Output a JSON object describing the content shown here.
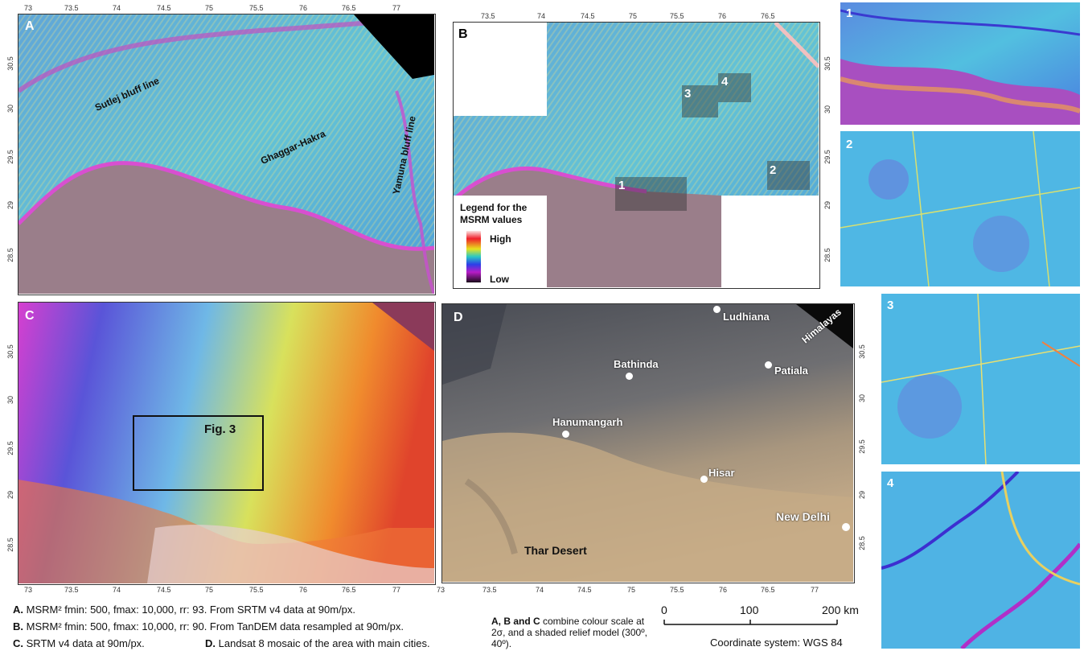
{
  "panels": {
    "A": {
      "letter": "A",
      "labels": {
        "sutlej": "Sutlej bluff line",
        "ghaggar": "Ghaggar-Hakra",
        "yamuna": "Yamuna bluff line"
      }
    },
    "B": {
      "letter": "B",
      "boxes": [
        "1",
        "2",
        "3",
        "4"
      ],
      "legend": {
        "title_line1": "Legend for the",
        "title_line2": "MSRM values",
        "high": "High",
        "low": "Low"
      }
    },
    "C": {
      "letter": "C",
      "fig_label": "Fig. 3"
    },
    "D": {
      "letter": "D",
      "himalayas": "Himalayas",
      "thar": "Thar Desert",
      "cities": {
        "ludhiana": "Ludhiana",
        "bathinda": "Bathinda",
        "patiala": "Patiala",
        "hanumangarh": "Hanumangarh",
        "hisar": "Hisar",
        "new_delhi": "New Delhi"
      }
    }
  },
  "insets": [
    "1",
    "2",
    "3",
    "4"
  ],
  "ticks": {
    "lon": [
      "73",
      "73.5",
      "74",
      "74.5",
      "75",
      "75.5",
      "76",
      "76.5",
      "77"
    ],
    "lat": [
      "30.5",
      "30",
      "29.5",
      "29",
      "28.5"
    ]
  },
  "captions": {
    "a_key": "A.",
    "a_text": "MSRM² fmin: 500, fmax: 10,000, rr: 93. From SRTM v4 data at 90m/px.",
    "b_key": "B.",
    "b_text": "MSRM² fmin: 500, fmax: 10,000, rr: 90. From TanDEM data resampled at 90m/px.",
    "c_key": "C.",
    "c_text": "SRTM v4 data at 90m/px.",
    "d_key": "D.",
    "d_text": "Landsat 8 mosaic of the area with main cities.",
    "note_keys": "A, B and C",
    "note_rest": " combine colour scale at 2σ, and a shaded relief model (300º, 40º).",
    "coord": "Coordinate system: WGS 84"
  },
  "scalebar": {
    "v0": "0",
    "v1": "100",
    "v2": "200 km"
  }
}
